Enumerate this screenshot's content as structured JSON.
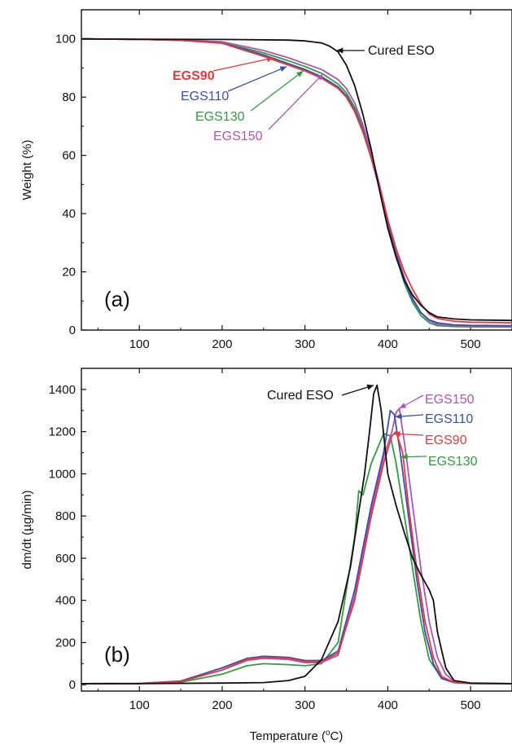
{
  "figure": {
    "xlabel_main": "Temperature (",
    "xlabel_degree": "o",
    "xlabel_unit": "C)"
  },
  "colors": {
    "Cured ESO": "#111111",
    "EGS90": "#e8383d",
    "EGS110": "#3b4fb0",
    "EGS130": "#2e9e3e",
    "EGS150": "#b055b5"
  },
  "chart_data": [
    {
      "type": "line",
      "panel_label": "(a)",
      "xlabel": "",
      "ylabel": "Weight (%)",
      "xlim": [
        30,
        550
      ],
      "ylim": [
        0,
        110
      ],
      "xticks": [
        100,
        200,
        300,
        400,
        500
      ],
      "yticks": [
        0,
        20,
        40,
        60,
        80,
        100
      ],
      "grid": false,
      "series": [
        {
          "name": "Cured ESO",
          "x": [
            30,
            100,
            200,
            280,
            300,
            320,
            330,
            340,
            350,
            360,
            370,
            380,
            390,
            400,
            410,
            420,
            430,
            440,
            450,
            460,
            480,
            500,
            550
          ],
          "y": [
            100,
            99.9,
            99.8,
            99.6,
            99.3,
            98.6,
            97.5,
            95.5,
            91,
            84,
            74,
            62,
            48,
            35,
            25,
            17,
            12,
            8.5,
            6,
            4.5,
            3.8,
            3.5,
            3.3
          ]
        },
        {
          "name": "EGS90",
          "x": [
            30,
            100,
            150,
            200,
            250,
            280,
            300,
            320,
            340,
            350,
            360,
            370,
            380,
            390,
            400,
            410,
            420,
            430,
            440,
            450,
            460,
            480,
            500,
            550
          ],
          "y": [
            100,
            99.8,
            99.5,
            98.5,
            94,
            91,
            89,
            86.5,
            83,
            80,
            75,
            68,
            59,
            49,
            38,
            28,
            20,
            14,
            9,
            5.5,
            4,
            3,
            2.7,
            2.5
          ]
        },
        {
          "name": "EGS110",
          "x": [
            30,
            100,
            150,
            200,
            250,
            280,
            300,
            320,
            340,
            350,
            360,
            370,
            380,
            390,
            400,
            410,
            420,
            430,
            440,
            450,
            460,
            480,
            500,
            550
          ],
          "y": [
            100,
            99.8,
            99.5,
            98.6,
            94.5,
            91.5,
            89.5,
            87,
            83.5,
            80.5,
            75.5,
            68.5,
            59,
            48.5,
            37,
            26,
            17,
            10.5,
            6,
            3.5,
            2.5,
            1.8,
            1.6,
            1.5
          ]
        },
        {
          "name": "EGS130",
          "x": [
            30,
            100,
            150,
            200,
            250,
            280,
            300,
            320,
            340,
            350,
            360,
            370,
            380,
            390,
            400,
            410,
            420,
            430,
            440,
            450,
            460,
            480,
            500,
            550
          ],
          "y": [
            100,
            99.8,
            99.5,
            98.7,
            95.2,
            92.5,
            90.5,
            88.2,
            84.5,
            81.5,
            76.5,
            69.5,
            60,
            49,
            37,
            25.5,
            16,
            9.5,
            5,
            2.5,
            1.5,
            1.2,
            1.1,
            1
          ]
        },
        {
          "name": "EGS150",
          "x": [
            30,
            100,
            150,
            200,
            250,
            280,
            300,
            320,
            340,
            350,
            360,
            370,
            380,
            390,
            400,
            410,
            420,
            430,
            440,
            450,
            460,
            480,
            500,
            550
          ],
          "y": [
            100,
            99.8,
            99.6,
            99,
            96,
            93.5,
            91.5,
            89.5,
            86,
            83,
            78,
            70.5,
            61,
            50,
            38,
            27,
            18,
            11,
            6,
            3.2,
            2,
            1.5,
            1.3,
            1.2
          ]
        }
      ],
      "annotations": [
        {
          "text": "Cured ESO",
          "series": "Cured ESO",
          "at": [
            338,
            96
          ]
        },
        {
          "text": "EGS90",
          "series": "EGS90",
          "at": [
            262,
            93.5
          ]
        },
        {
          "text": "EGS110",
          "series": "EGS110",
          "at": [
            278,
            90.5
          ]
        },
        {
          "text": "EGS130",
          "series": "EGS130",
          "at": [
            298,
            89
          ]
        },
        {
          "text": "EGS150",
          "series": "EGS150",
          "at": [
            322,
            88
          ]
        }
      ]
    },
    {
      "type": "line",
      "panel_label": "(b)",
      "xlabel": "Temperature (°C)",
      "ylabel": "dm/dt (µg/min)",
      "xlim": [
        30,
        550
      ],
      "ylim": [
        -30,
        1500
      ],
      "xticks": [
        100,
        200,
        300,
        400,
        500
      ],
      "yticks": [
        0,
        200,
        400,
        600,
        800,
        1000,
        1200,
        1400
      ],
      "grid": false,
      "series": [
        {
          "name": "Cured ESO",
          "x": [
            30,
            100,
            200,
            250,
            280,
            300,
            320,
            340,
            355,
            365,
            372,
            378,
            383,
            387,
            392,
            400,
            410,
            420,
            430,
            440,
            450,
            455,
            460,
            470,
            480,
            500,
            550
          ],
          "y": [
            5,
            5,
            8,
            10,
            20,
            40,
            120,
            300,
            560,
            820,
            1000,
            1200,
            1380,
            1420,
            1300,
            1000,
            850,
            720,
            600,
            520,
            450,
            400,
            250,
            80,
            20,
            8,
            5
          ]
        },
        {
          "name": "EGS90",
          "x": [
            30,
            100,
            150,
            200,
            230,
            250,
            280,
            300,
            320,
            340,
            360,
            380,
            395,
            405,
            410,
            418,
            425,
            435,
            445,
            455,
            465,
            480,
            500,
            550
          ],
          "y": [
            5,
            6,
            15,
            70,
            120,
            130,
            125,
            110,
            110,
            150,
            400,
            800,
            1050,
            1180,
            1200,
            1100,
            850,
            550,
            300,
            130,
            40,
            10,
            6,
            5
          ]
        },
        {
          "name": "EGS110",
          "x": [
            30,
            100,
            150,
            200,
            230,
            250,
            280,
            300,
            320,
            340,
            360,
            380,
            395,
            403,
            408,
            415,
            425,
            435,
            445,
            455,
            465,
            480,
            500,
            550
          ],
          "y": [
            5,
            6,
            18,
            80,
            125,
            135,
            130,
            115,
            115,
            160,
            450,
            850,
            1100,
            1300,
            1280,
            1100,
            800,
            500,
            250,
            100,
            30,
            10,
            6,
            5
          ]
        },
        {
          "name": "EGS130",
          "x": [
            30,
            100,
            150,
            200,
            230,
            250,
            280,
            300,
            320,
            340,
            360,
            365,
            370,
            380,
            395,
            403,
            410,
            420,
            430,
            440,
            450,
            465,
            480,
            500,
            550
          ],
          "y": [
            5,
            5,
            12,
            50,
            90,
            100,
            95,
            90,
            100,
            200,
            700,
            920,
            900,
            1050,
            1190,
            1180,
            1050,
            800,
            550,
            300,
            120,
            30,
            10,
            6,
            5
          ]
        },
        {
          "name": "EGS150",
          "x": [
            30,
            100,
            150,
            200,
            230,
            250,
            280,
            300,
            320,
            340,
            360,
            380,
            395,
            405,
            410,
            414,
            420,
            430,
            440,
            450,
            460,
            470,
            480,
            500,
            550
          ],
          "y": [
            5,
            6,
            15,
            70,
            115,
            125,
            120,
            105,
            105,
            140,
            420,
            820,
            1080,
            1200,
            1290,
            1310,
            1150,
            850,
            550,
            300,
            130,
            50,
            15,
            6,
            5
          ]
        }
      ],
      "annotations": [
        {
          "text": "Cured ESO",
          "series": "Cured ESO",
          "at": [
            383,
            1420
          ]
        },
        {
          "text": "EGS150",
          "series": "EGS150",
          "at": [
            414,
            1310
          ]
        },
        {
          "text": "EGS110",
          "series": "EGS110",
          "at": [
            409,
            1270
          ]
        },
        {
          "text": "EGS90",
          "series": "EGS90",
          "at": [
            407,
            1190
          ]
        },
        {
          "text": "EGS130",
          "series": "EGS130",
          "at": [
            416,
            1080
          ]
        }
      ]
    }
  ]
}
